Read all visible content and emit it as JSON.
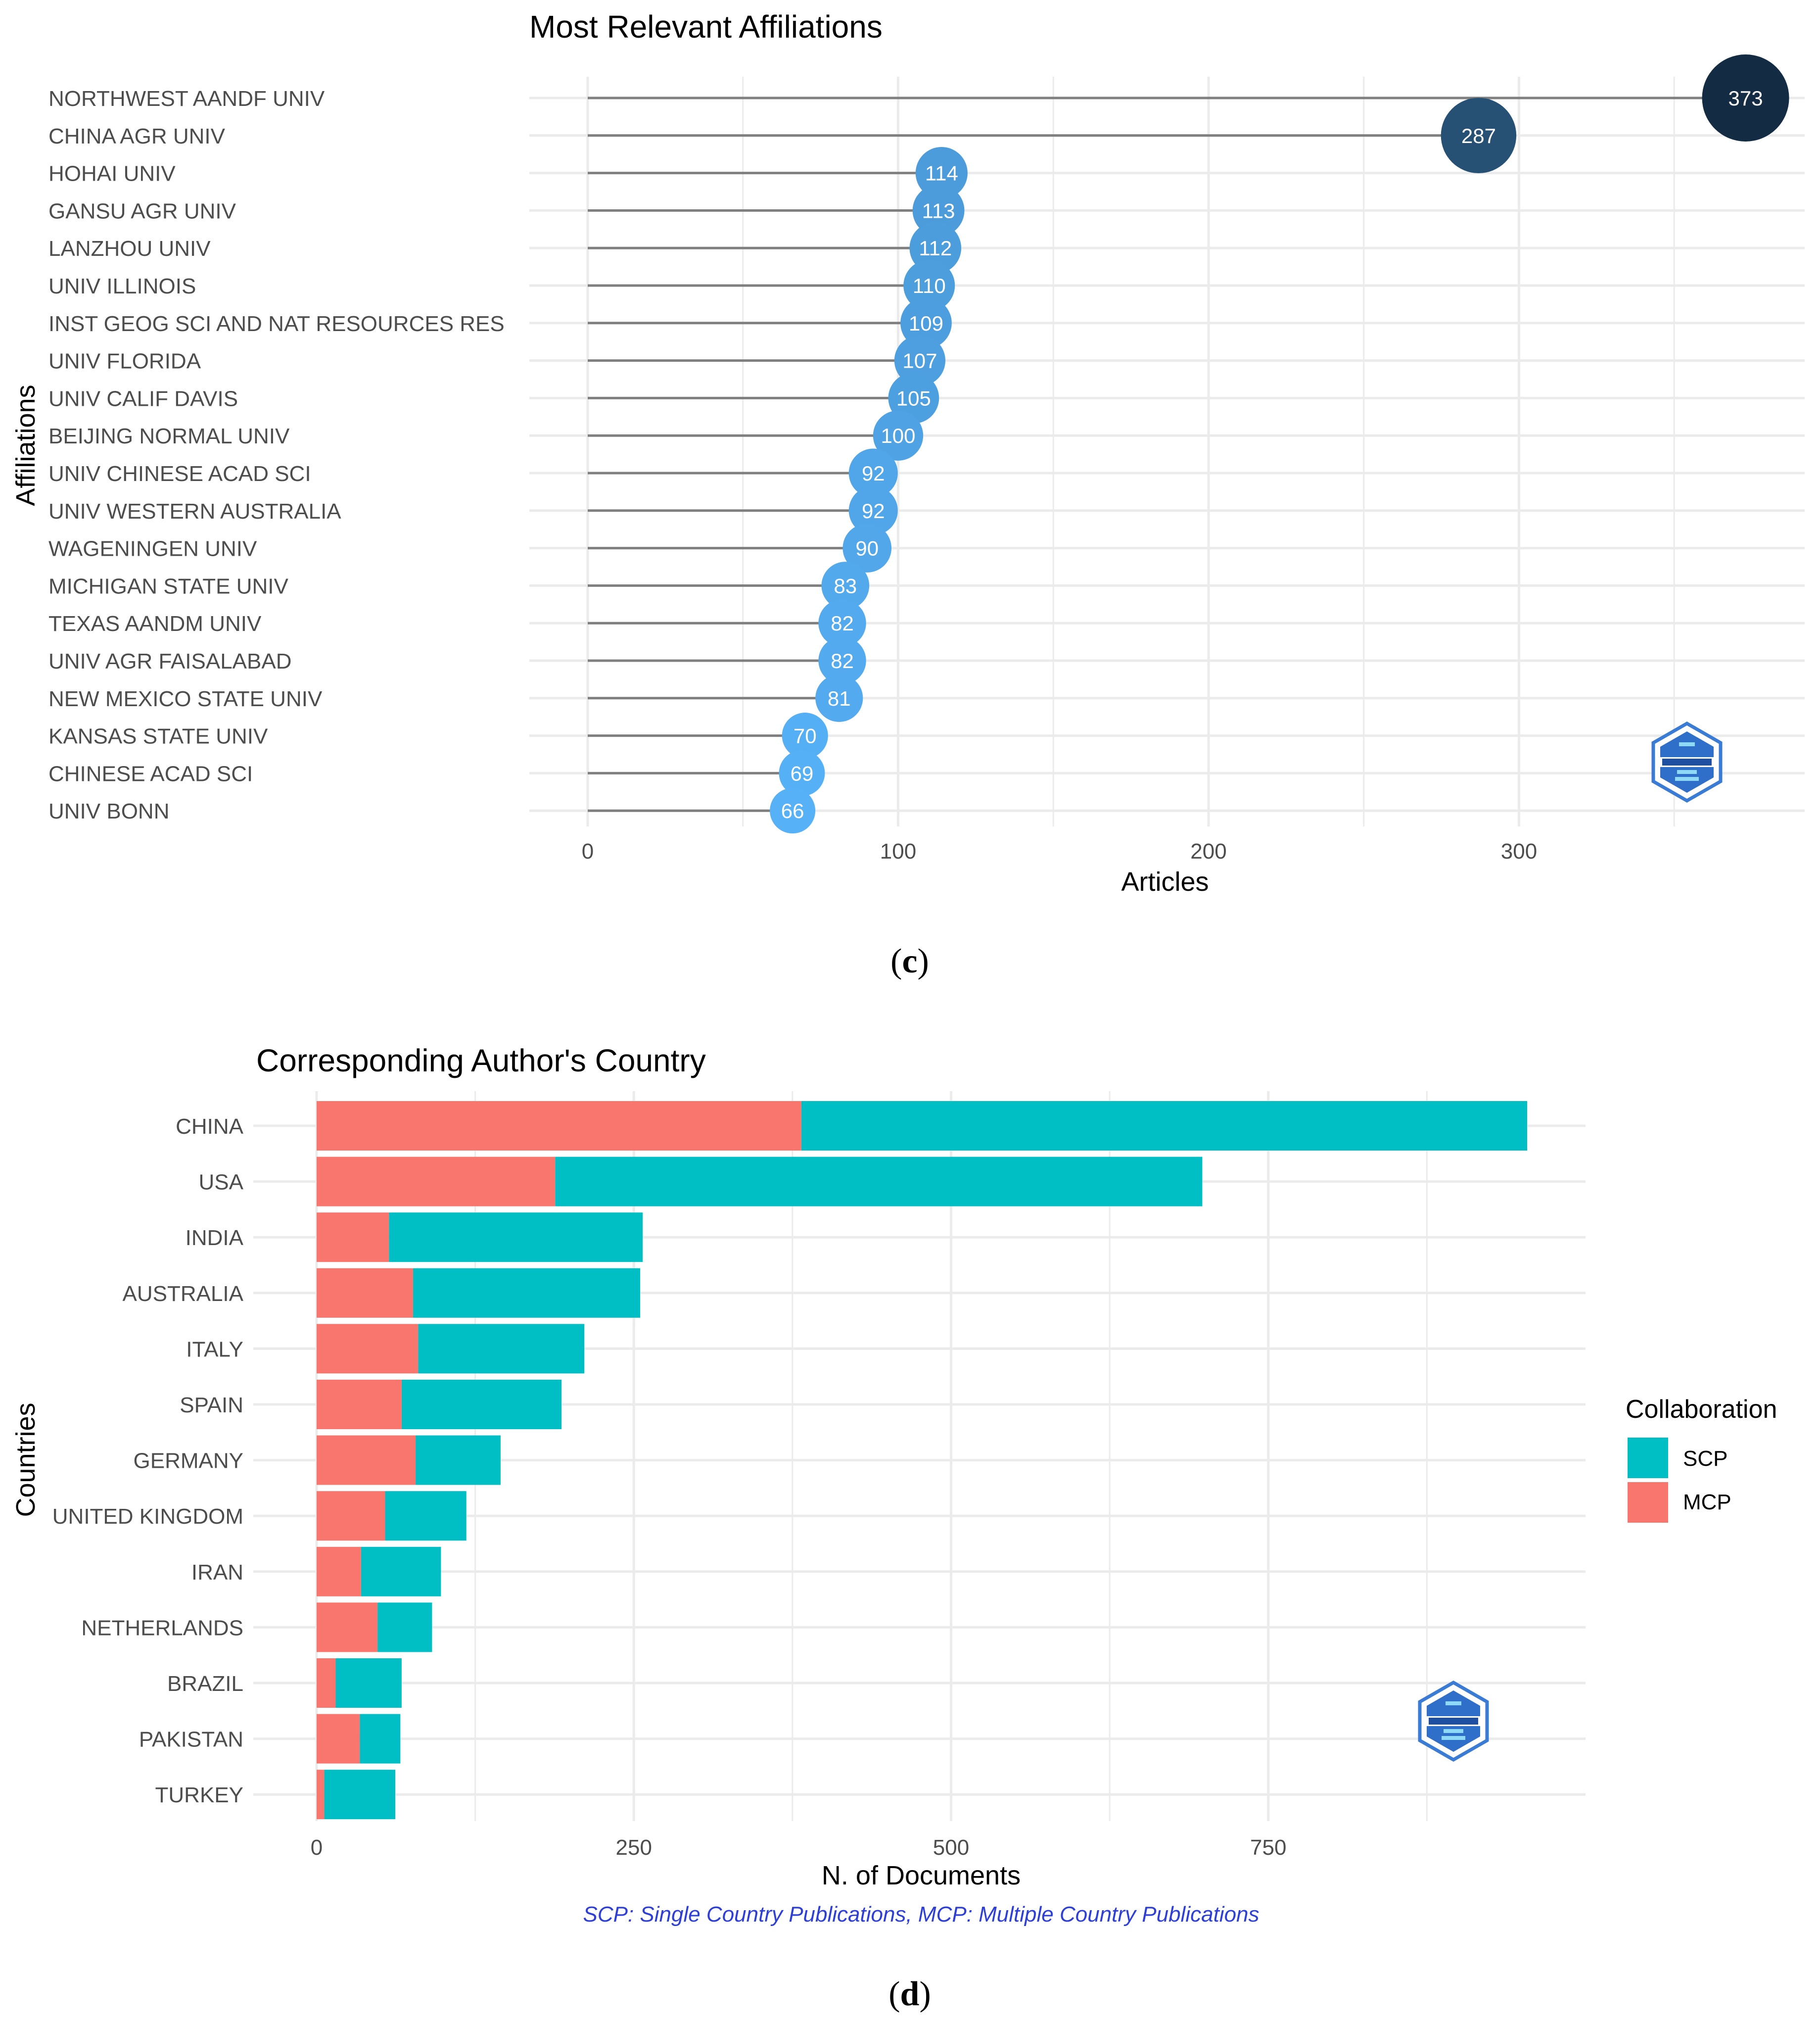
{
  "colors": {
    "grid": "#ebebeb",
    "stem": "#7f7f7f",
    "dot_low": "#56B1F7",
    "dot_high": "#132B43",
    "scp": "#00BFC4",
    "mcp": "#F8766D",
    "note": "#2d3fd6",
    "text": "#4d4d4d"
  },
  "icons": {
    "chart_c_logo": "bibliometrix-logo-icon",
    "chart_d_logo": "bibliometrix-logo-icon"
  },
  "captions": {
    "c": "c",
    "d": "d"
  },
  "chart_data": [
    {
      "type": "lollipop",
      "title": "Most Relevant Affiliations",
      "xlabel": "Articles",
      "ylabel": "Affiliations",
      "xlim": [
        0,
        390
      ],
      "x_ticks": [
        0,
        100,
        200,
        300
      ],
      "grid": true,
      "color_scale": "values mapped from light blue (low) to dark navy (high)",
      "categories": [
        "NORTHWEST AANDF UNIV",
        "CHINA AGR UNIV",
        "HOHAI UNIV",
        "GANSU AGR UNIV",
        "LANZHOU UNIV",
        "UNIV ILLINOIS",
        "INST GEOG SCI AND NAT RESOURCES RES",
        "UNIV FLORIDA",
        "UNIV CALIF DAVIS",
        "BEIJING NORMAL UNIV",
        "UNIV CHINESE ACAD SCI",
        "UNIV WESTERN AUSTRALIA",
        "WAGENINGEN UNIV",
        "MICHIGAN STATE UNIV",
        "TEXAS AANDM UNIV",
        "UNIV AGR FAISALABAD",
        "NEW MEXICO STATE UNIV",
        "KANSAS STATE UNIV",
        "CHINESE ACAD SCI",
        "UNIV BONN"
      ],
      "values": [
        373,
        287,
        114,
        113,
        112,
        110,
        109,
        107,
        105,
        100,
        92,
        92,
        90,
        83,
        82,
        82,
        81,
        70,
        69,
        66
      ],
      "labels": [
        "373",
        "287",
        "114",
        "113",
        "112",
        "110",
        "109",
        "107",
        "105",
        "100",
        "92",
        "92",
        "90",
        "83",
        "82",
        "82",
        "81",
        "70",
        "69",
        "66"
      ]
    },
    {
      "type": "bar",
      "orientation": "horizontal",
      "stacked": true,
      "title": "Corresponding Author's Country",
      "xlabel": "N. of Documents",
      "ylabel": "Countries",
      "xlim": [
        0,
        1000
      ],
      "x_ticks": [
        0,
        250,
        500,
        750
      ],
      "grid": true,
      "legend": {
        "title": "Collaboration",
        "position": "right",
        "entries": [
          "SCP",
          "MCP"
        ]
      },
      "note": "SCP: Single Country Publications, MCP: Multiple Country Publications",
      "categories": [
        "CHINA",
        "USA",
        "INDIA",
        "AUSTRALIA",
        "ITALY",
        "SPAIN",
        "GERMANY",
        "UNITED KINGDOM",
        "IRAN",
        "NETHERLANDS",
        "BRAZIL",
        "PAKISTAN",
        "TURKEY"
      ],
      "series": [
        {
          "name": "MCP",
          "values": [
            382,
            188,
            57,
            76,
            80,
            67,
            78,
            54,
            35,
            48,
            15,
            34,
            6
          ]
        },
        {
          "name": "SCP",
          "values": [
            572,
            510,
            200,
            179,
            131,
            126,
            67,
            64,
            63,
            43,
            52,
            32,
            56
          ]
        }
      ]
    }
  ]
}
